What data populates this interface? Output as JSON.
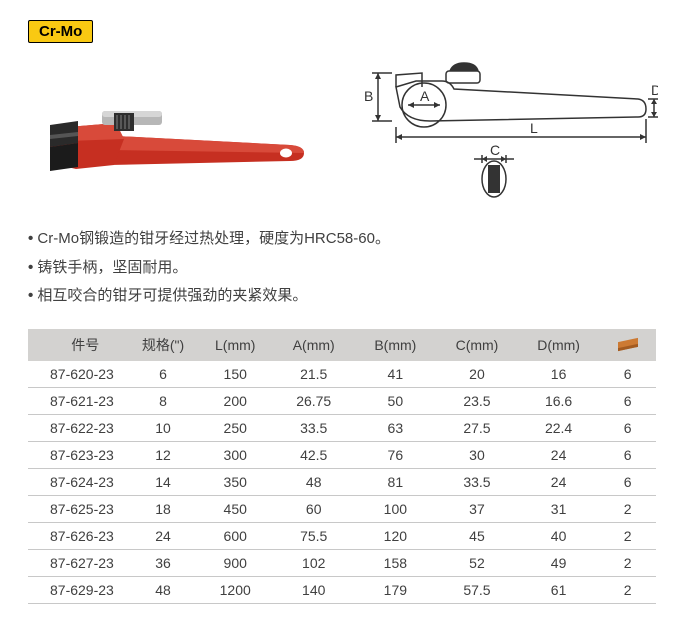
{
  "badge": {
    "text": "Cr-Mo",
    "bg": "#f9c912"
  },
  "features": [
    "Cr-Mo钢锻造的钳牙经过热处理，硬度为HRC58-60。",
    "铸铁手柄，坚固耐用。",
    "相互咬合的钳牙可提供强劲的夹紧效果。"
  ],
  "diagram": {
    "labels": {
      "A": "A",
      "B": "B",
      "C": "C",
      "D": "D",
      "L": "L"
    }
  },
  "table": {
    "columns": [
      "件号",
      "规格(\")",
      "L(mm)",
      "A(mm)",
      "B(mm)",
      "C(mm)",
      "D(mm)",
      "__pkg__"
    ],
    "col_widths": [
      "16%",
      "11%",
      "12%",
      "13%",
      "13%",
      "13%",
      "13%",
      "9%"
    ],
    "header_bg": "#d3d2d0",
    "row_border": "#c8c8c8",
    "rows": [
      [
        "87-620-23",
        "6",
        "150",
        "21.5",
        "41",
        "20",
        "16",
        "6"
      ],
      [
        "87-621-23",
        "8",
        "200",
        "26.75",
        "50",
        "23.5",
        "16.6",
        "6"
      ],
      [
        "87-622-23",
        "10",
        "250",
        "33.5",
        "63",
        "27.5",
        "22.4",
        "6"
      ],
      [
        "87-623-23",
        "12",
        "300",
        "42.5",
        "76",
        "30",
        "24",
        "6"
      ],
      [
        "87-624-23",
        "14",
        "350",
        "48",
        "81",
        "33.5",
        "24",
        "6"
      ],
      [
        "87-625-23",
        "18",
        "450",
        "60",
        "100",
        "37",
        "31",
        "2"
      ],
      [
        "87-626-23",
        "24",
        "600",
        "75.5",
        "120",
        "45",
        "40",
        "2"
      ],
      [
        "87-627-23",
        "36",
        "900",
        "102",
        "158",
        "52",
        "49",
        "2"
      ],
      [
        "87-629-23",
        "48",
        "1200",
        "140",
        "179",
        "57.5",
        "61",
        "2"
      ]
    ]
  },
  "photo_colors": {
    "handle": "#c62f21",
    "handle_dark": "#8a1d14",
    "jaw": "#2a2a2a",
    "nut": "#3a3a3a"
  }
}
